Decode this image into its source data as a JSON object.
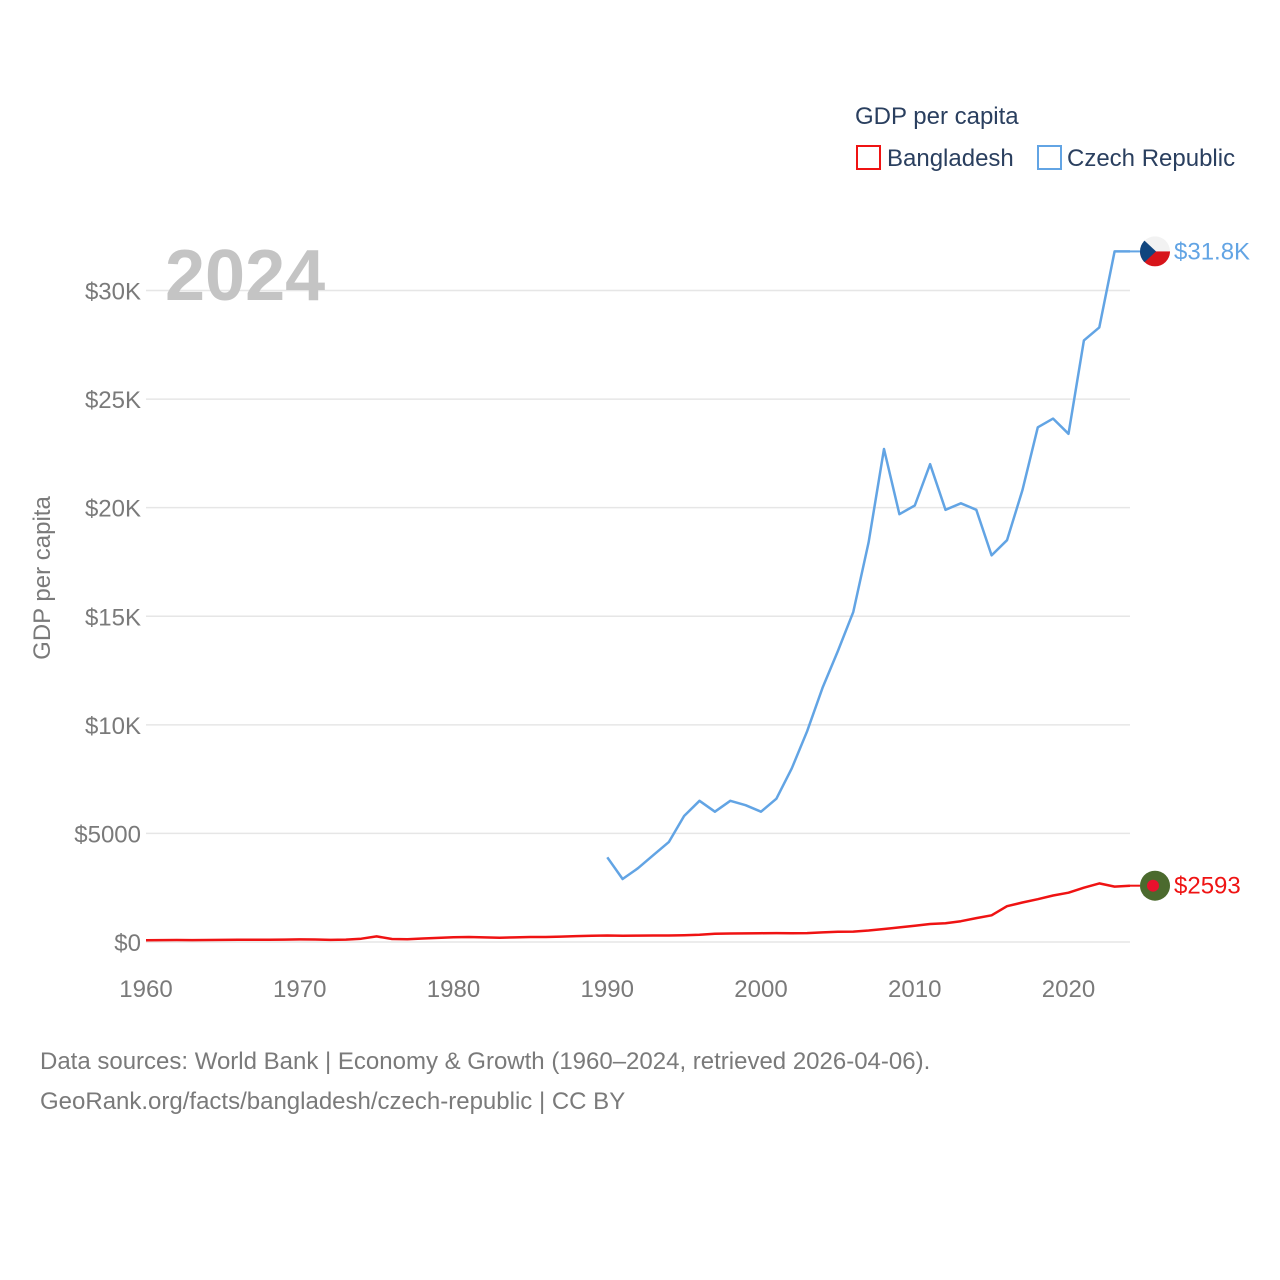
{
  "chart_data": {
    "type": "line",
    "year_label": "2024",
    "ylabel": "GDP per capita",
    "xlabel": "",
    "xlim": [
      1960,
      2024
    ],
    "ylim": [
      0,
      32500
    ],
    "x_ticks": [
      1960,
      1970,
      1980,
      1990,
      2000,
      2010,
      2020
    ],
    "x_tick_labels": [
      "1960",
      "1970",
      "1980",
      "1990",
      "2000",
      "2010",
      "2020"
    ],
    "y_ticks": [
      0,
      5000,
      10000,
      15000,
      20000,
      25000,
      30000
    ],
    "y_tick_labels": [
      "$0",
      "$5000",
      "$10K",
      "$15K",
      "$20K",
      "$25K",
      "$30K"
    ],
    "grid": true,
    "legend": {
      "title": "GDP per capita",
      "position": "top-right",
      "items": [
        "Bangladesh",
        "Czech Republic"
      ]
    },
    "series": [
      {
        "name": "Czech Republic",
        "color": "#62a4e4",
        "end_label": "$31.8K",
        "flag": "czech-flag",
        "x": [
          1990,
          1991,
          1992,
          1993,
          1994,
          1995,
          1996,
          1997,
          1998,
          1999,
          2000,
          2001,
          2002,
          2003,
          2004,
          2005,
          2006,
          2007,
          2008,
          2009,
          2010,
          2011,
          2012,
          2013,
          2014,
          2015,
          2016,
          2017,
          2018,
          2019,
          2020,
          2021,
          2022,
          2023,
          2024
        ],
        "values": [
          3900,
          2900,
          3400,
          4000,
          4600,
          5800,
          6500,
          6000,
          6500,
          6300,
          6000,
          6600,
          8000,
          9700,
          11700,
          13400,
          15200,
          18400,
          22700,
          19700,
          20100,
          22000,
          19900,
          20200,
          19900,
          17800,
          18500,
          20800,
          23700,
          24100,
          23400,
          27700,
          28300,
          31800,
          31800
        ]
      },
      {
        "name": "Bangladesh",
        "color": "#ef1313",
        "end_label": "$2593",
        "flag": "bangladesh-flag",
        "x": [
          1960,
          1961,
          1962,
          1963,
          1964,
          1965,
          1966,
          1967,
          1968,
          1969,
          1970,
          1971,
          1972,
          1973,
          1974,
          1975,
          1976,
          1977,
          1978,
          1979,
          1980,
          1981,
          1982,
          1983,
          1984,
          1985,
          1986,
          1987,
          1988,
          1989,
          1990,
          1991,
          1992,
          1993,
          1994,
          1995,
          1996,
          1997,
          1998,
          1999,
          2000,
          2001,
          2002,
          2003,
          2004,
          2005,
          2006,
          2007,
          2008,
          2009,
          2010,
          2011,
          2012,
          2013,
          2014,
          2015,
          2016,
          2017,
          2018,
          2019,
          2020,
          2021,
          2022,
          2023,
          2024
        ],
        "values": [
          85,
          87,
          92,
          88,
          90,
          95,
          100,
          102,
          105,
          110,
          120,
          115,
          95,
          110,
          150,
          260,
          140,
          125,
          160,
          190,
          220,
          230,
          210,
          200,
          210,
          230,
          230,
          250,
          270,
          290,
          300,
          290,
          295,
          300,
          300,
          310,
          330,
          380,
          390,
          395,
          405,
          410,
          400,
          410,
          440,
          470,
          480,
          530,
          600,
          670,
          750,
          830,
          860,
          960,
          1100,
          1230,
          1650,
          1820,
          1970,
          2140,
          2270,
          2500,
          2700,
          2550,
          2593
        ]
      }
    ]
  },
  "footer": {
    "line1": "Data sources: World Bank | Economy & Growth (1960–2024, retrieved 2026-04-06).",
    "line2": "GeoRank.org/facts/bangladesh/czech-republic | CC BY"
  }
}
